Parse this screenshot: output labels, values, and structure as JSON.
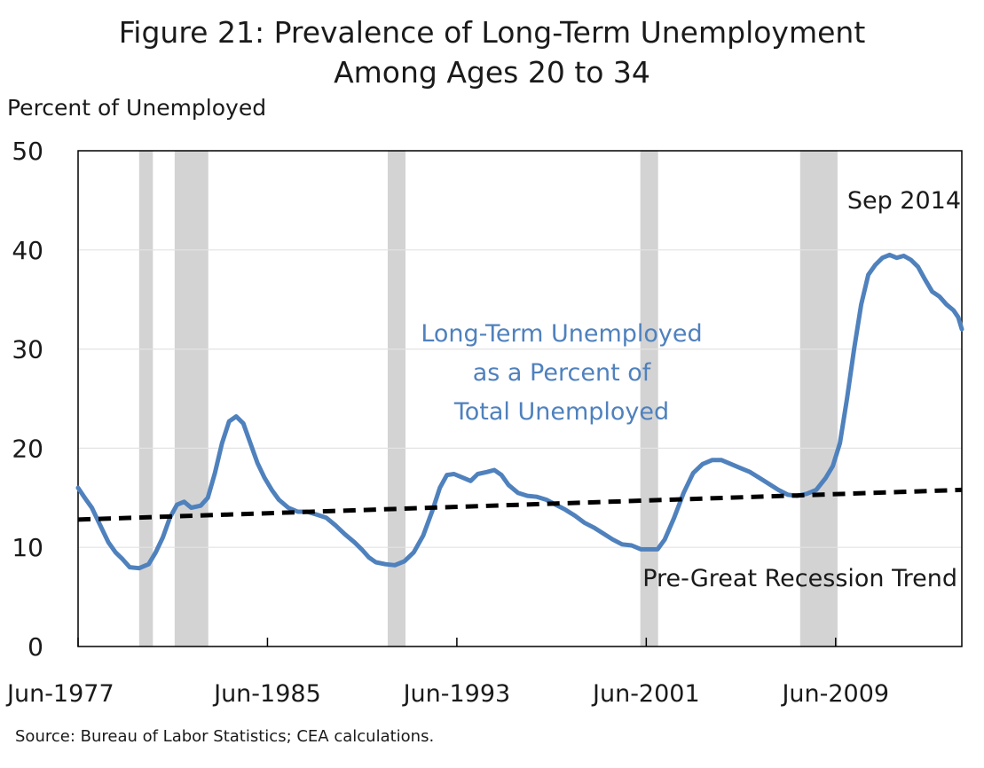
{
  "chart_data": {
    "type": "line",
    "title_lines": [
      "Figure 21: Prevalence of Long-Term Unemployment",
      "Among Ages 20 to 34"
    ],
    "ylabel": "Percent of Unemployed",
    "xlabel": "",
    "source": "Source: Bureau of Labor Statistics; CEA calculations.",
    "ylim": [
      0,
      50
    ],
    "xlim": [
      1977.42,
      2014.75
    ],
    "yticks": [
      0,
      10,
      20,
      30,
      40,
      50
    ],
    "xticks": [
      {
        "label": "Jun-1977",
        "x": 1977.42
      },
      {
        "label": "Jun-1985",
        "x": 1985.42
      },
      {
        "label": "Jun-1993",
        "x": 1993.42
      },
      {
        "label": "Jun-2001",
        "x": 2001.42
      },
      {
        "label": "Jun-2009",
        "x": 2009.42
      }
    ],
    "grid": true,
    "recessions": [
      [
        1980.0,
        1980.58
      ],
      [
        1981.5,
        1982.92
      ],
      [
        1990.5,
        1991.25
      ],
      [
        2001.17,
        2001.92
      ],
      [
        2007.92,
        2009.5
      ]
    ],
    "series": [
      {
        "name": "Long-Term Unemployed as a Percent of Total Unemployed",
        "color": "#4f81bd",
        "style": "solid",
        "points": [
          [
            1977.42,
            16.0
          ],
          [
            1977.7,
            15.0
          ],
          [
            1978.0,
            14.0
          ],
          [
            1978.3,
            12.5
          ],
          [
            1978.7,
            10.5
          ],
          [
            1979.0,
            9.5
          ],
          [
            1979.3,
            8.8
          ],
          [
            1979.6,
            8.0
          ],
          [
            1980.0,
            7.9
          ],
          [
            1980.4,
            8.3
          ],
          [
            1980.7,
            9.5
          ],
          [
            1981.0,
            11.0
          ],
          [
            1981.3,
            13.0
          ],
          [
            1981.6,
            14.3
          ],
          [
            1981.9,
            14.6
          ],
          [
            1982.2,
            14.0
          ],
          [
            1982.6,
            14.2
          ],
          [
            1982.9,
            15.0
          ],
          [
            1983.2,
            17.5
          ],
          [
            1983.5,
            20.5
          ],
          [
            1983.8,
            22.7
          ],
          [
            1984.1,
            23.2
          ],
          [
            1984.4,
            22.5
          ],
          [
            1984.7,
            20.5
          ],
          [
            1985.0,
            18.5
          ],
          [
            1985.3,
            17.0
          ],
          [
            1985.6,
            15.8
          ],
          [
            1985.9,
            14.8
          ],
          [
            1986.3,
            14.0
          ],
          [
            1986.7,
            13.6
          ],
          [
            1987.1,
            13.6
          ],
          [
            1987.5,
            13.3
          ],
          [
            1987.9,
            13.0
          ],
          [
            1988.3,
            12.2
          ],
          [
            1988.7,
            11.3
          ],
          [
            1989.1,
            10.5
          ],
          [
            1989.4,
            9.8
          ],
          [
            1989.7,
            9.0
          ],
          [
            1990.0,
            8.5
          ],
          [
            1990.4,
            8.3
          ],
          [
            1990.8,
            8.2
          ],
          [
            1991.2,
            8.6
          ],
          [
            1991.6,
            9.5
          ],
          [
            1992.0,
            11.2
          ],
          [
            1992.4,
            13.8
          ],
          [
            1992.7,
            16.0
          ],
          [
            1993.0,
            17.3
          ],
          [
            1993.3,
            17.4
          ],
          [
            1993.7,
            17.0
          ],
          [
            1994.0,
            16.7
          ],
          [
            1994.3,
            17.4
          ],
          [
            1994.7,
            17.6
          ],
          [
            1995.0,
            17.8
          ],
          [
            1995.3,
            17.3
          ],
          [
            1995.6,
            16.3
          ],
          [
            1996.0,
            15.5
          ],
          [
            1996.4,
            15.2
          ],
          [
            1996.8,
            15.1
          ],
          [
            1997.2,
            14.8
          ],
          [
            1997.6,
            14.3
          ],
          [
            1998.0,
            13.8
          ],
          [
            1998.4,
            13.2
          ],
          [
            1998.8,
            12.5
          ],
          [
            1999.2,
            12.0
          ],
          [
            1999.6,
            11.4
          ],
          [
            2000.0,
            10.8
          ],
          [
            2000.4,
            10.3
          ],
          [
            2000.8,
            10.2
          ],
          [
            2001.2,
            9.8
          ],
          [
            2001.6,
            9.8
          ],
          [
            2001.9,
            9.8
          ],
          [
            2002.2,
            10.8
          ],
          [
            2002.6,
            13.0
          ],
          [
            2003.0,
            15.5
          ],
          [
            2003.4,
            17.5
          ],
          [
            2003.8,
            18.4
          ],
          [
            2004.2,
            18.8
          ],
          [
            2004.6,
            18.8
          ],
          [
            2005.0,
            18.4
          ],
          [
            2005.4,
            18.0
          ],
          [
            2005.8,
            17.6
          ],
          [
            2006.2,
            17.0
          ],
          [
            2006.6,
            16.4
          ],
          [
            2007.0,
            15.8
          ],
          [
            2007.4,
            15.3
          ],
          [
            2007.8,
            15.2
          ],
          [
            2008.2,
            15.4
          ],
          [
            2008.6,
            15.8
          ],
          [
            2009.0,
            17.0
          ],
          [
            2009.3,
            18.2
          ],
          [
            2009.6,
            20.5
          ],
          [
            2009.9,
            25.0
          ],
          [
            2010.2,
            30.0
          ],
          [
            2010.5,
            34.5
          ],
          [
            2010.8,
            37.5
          ],
          [
            2011.1,
            38.5
          ],
          [
            2011.4,
            39.2
          ],
          [
            2011.7,
            39.5
          ],
          [
            2012.0,
            39.2
          ],
          [
            2012.3,
            39.4
          ],
          [
            2012.6,
            39.0
          ],
          [
            2012.9,
            38.3
          ],
          [
            2013.2,
            37.0
          ],
          [
            2013.5,
            35.8
          ],
          [
            2013.8,
            35.3
          ],
          [
            2014.1,
            34.5
          ],
          [
            2014.4,
            33.9
          ],
          [
            2014.6,
            33.2
          ],
          [
            2014.75,
            32.0
          ]
        ]
      },
      {
        "name": "Pre-Great Recession Trend",
        "color": "#000000",
        "style": "dashed",
        "points": [
          [
            1977.42,
            12.8
          ],
          [
            2014.75,
            15.8
          ]
        ]
      }
    ],
    "annotations": [
      {
        "text_lines": [
          "Long-Term Unemployed",
          "as a Percent of",
          "Total  Unemployed"
        ],
        "color": "#4f81bd"
      },
      {
        "text_lines": [
          "Pre-Great Recession Trend"
        ],
        "color": "#1a1a1a"
      },
      {
        "text_lines": [
          "Sep 2014"
        ],
        "color": "#1a1a1a"
      }
    ]
  }
}
